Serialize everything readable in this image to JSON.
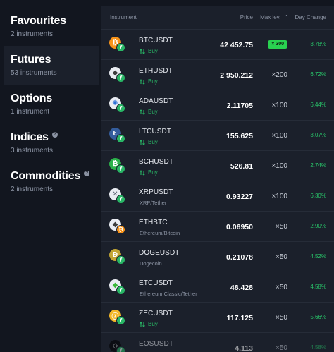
{
  "sidebar": {
    "categories": [
      {
        "title": "Favourites",
        "count": "2 instruments",
        "help": false
      },
      {
        "title": "Futures",
        "count": "53 instruments",
        "help": false
      },
      {
        "title": "Options",
        "count": "1 instrument",
        "help": false
      },
      {
        "title": "Indices",
        "count": "3 instruments",
        "help": true
      },
      {
        "title": "Commodities",
        "count": "2 instruments",
        "help": true
      }
    ],
    "active_index": 1,
    "help_glyph": "?"
  },
  "table": {
    "headers": {
      "instrument": "Instrument",
      "price": "Price",
      "max_lev": "Max lev.",
      "day_change": "Day Change",
      "sort_icon": "chevron-up-icon"
    },
    "badge_letter": "f",
    "rows": [
      {
        "symbol": "BTCUSDT",
        "sub": "Buy",
        "sub_type": "buy",
        "price": "42 452.75",
        "max_lev": "× 300",
        "lev_style": "pill",
        "change": "3.78%",
        "coin_color": "#f7931a",
        "coin_glyph": "₿",
        "coin_icon": "bitcoin-icon",
        "coin_light": false
      },
      {
        "symbol": "ETHUSDT",
        "sub": "Buy",
        "sub_type": "buy",
        "price": "2 950.212",
        "max_lev": "×200",
        "lev_style": "text",
        "change": "6.72%",
        "coin_color": "#ffffff",
        "coin_glyph": "◆",
        "coin_icon": "ethereum-icon",
        "coin_light": true
      },
      {
        "symbol": "ADAUSDT",
        "sub": "Buy",
        "sub_type": "buy",
        "price": "2.11705",
        "max_lev": "×100",
        "lev_style": "text",
        "change": "6.44%",
        "coin_color": "#2a6fd6",
        "coin_glyph": "✺",
        "coin_icon": "cardano-icon",
        "coin_light": true
      },
      {
        "symbol": "LTCUSDT",
        "sub": "Buy",
        "sub_type": "buy",
        "price": "155.625",
        "max_lev": "×100",
        "lev_style": "text",
        "change": "3.07%",
        "coin_color": "#345d9d",
        "coin_glyph": "Ł",
        "coin_icon": "litecoin-icon",
        "coin_light": false
      },
      {
        "symbol": "BCHUSDT",
        "sub": "Buy",
        "sub_type": "buy",
        "price": "526.81",
        "max_lev": "×100",
        "lev_style": "text",
        "change": "2.74%",
        "coin_color": "#2bb24a",
        "coin_glyph": "₿",
        "coin_icon": "bitcoin-cash-icon",
        "coin_light": false
      },
      {
        "symbol": "XRPUSDT",
        "sub": "XRP/Tether",
        "sub_type": "text",
        "price": "0.93227",
        "max_lev": "×100",
        "lev_style": "text",
        "change": "6.30%",
        "coin_color": "#5d6675",
        "coin_glyph": "✕",
        "coin_icon": "xrp-icon",
        "coin_light": true
      },
      {
        "symbol": "ETHBTC",
        "sub": "Ethereum/Bitcoin",
        "sub_type": "text",
        "price": "0.06950",
        "max_lev": "×50",
        "lev_style": "text",
        "change": "2.90%",
        "coin_color": "#ffffff",
        "coin_glyph": "◆",
        "coin_icon": "ethereum-icon",
        "coin_light": true,
        "badge_color": "#f7931a",
        "badge_glyph": "₿"
      },
      {
        "symbol": "DOGEUSDT",
        "sub": "Dogecoin",
        "sub_type": "text",
        "price": "0.21078",
        "max_lev": "×50",
        "lev_style": "text",
        "change": "4.52%",
        "coin_color": "#c3a634",
        "coin_glyph": "Ð",
        "coin_icon": "dogecoin-icon",
        "coin_light": false
      },
      {
        "symbol": "ETCUSDT",
        "sub": "Ethereum Classic/Tether",
        "sub_type": "text",
        "price": "48.428",
        "max_lev": "×50",
        "lev_style": "text",
        "change": "4.58%",
        "coin_color": "#3ab83a",
        "coin_glyph": "◆",
        "coin_icon": "ethereum-classic-icon",
        "coin_light": true
      },
      {
        "symbol": "ZECUSDT",
        "sub": "Buy",
        "sub_type": "buy",
        "price": "117.125",
        "max_lev": "×50",
        "lev_style": "text",
        "change": "5.66%",
        "coin_color": "#f4b728",
        "coin_glyph": "ⓩ",
        "coin_icon": "zcash-icon",
        "coin_light": false
      },
      {
        "symbol": "EOSUSDT",
        "sub": "",
        "sub_type": "text",
        "price": "4.113",
        "max_lev": "×50",
        "lev_style": "text",
        "change": "4.58%",
        "coin_color": "#000000",
        "coin_glyph": "◇",
        "coin_icon": "eos-icon",
        "coin_light": false
      }
    ]
  },
  "colors": {
    "up": "#29c56a",
    "buy": "#29b766",
    "pill": "#29d150"
  }
}
